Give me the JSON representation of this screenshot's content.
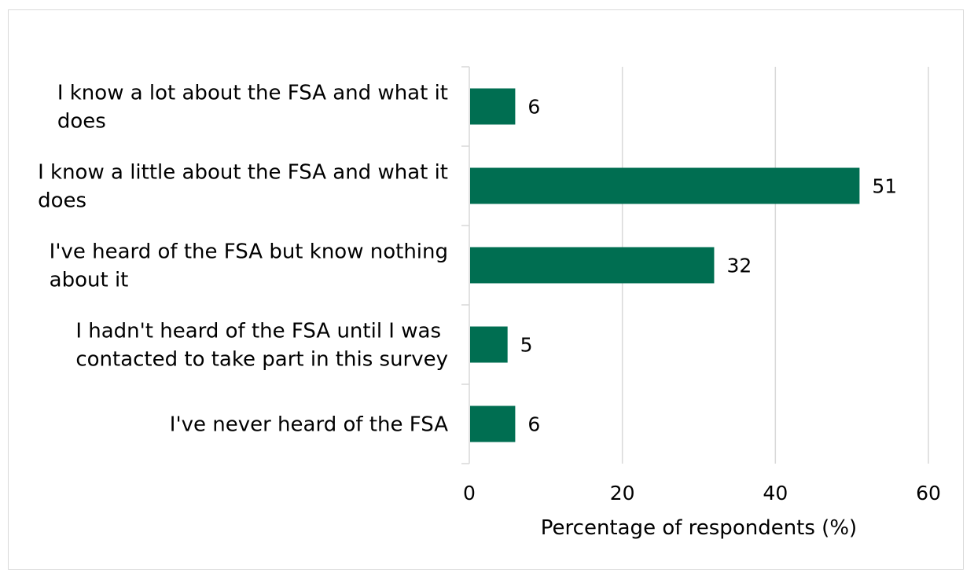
{
  "chart_data": {
    "type": "bar",
    "orientation": "horizontal",
    "title": "",
    "xlabel": "Percentage of respondents (%)",
    "ylabel": "",
    "categories": [
      [
        "I know a lot about the FSA and what it",
        "does"
      ],
      [
        "I know a little about the FSA and what it",
        "does"
      ],
      [
        "I've heard of the FSA but know nothing",
        "about it"
      ],
      [
        "I hadn't heard of the FSA until I was",
        "contacted to take part in this survey"
      ],
      [
        "I've never heard of the FSA"
      ]
    ],
    "values": [
      6,
      51,
      32,
      5,
      6
    ],
    "xlim": [
      0,
      60
    ],
    "xticks": [
      0,
      20,
      40,
      60
    ],
    "grid": "vertical",
    "legend": "none",
    "bar_color": "#006e51",
    "grid_color": "#d9d9d9"
  }
}
